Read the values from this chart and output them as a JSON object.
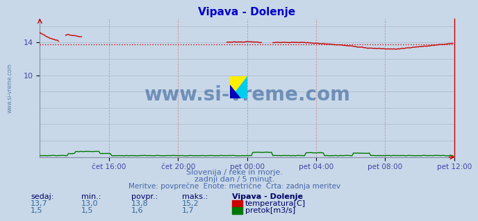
{
  "title": "Vipava - Dolenje",
  "background_color": "#c8d8e8",
  "plot_bg_color": "#c8d8e8",
  "grid_color_h": "#aabccc",
  "grid_color_v": "#cc9999",
  "xlabel_ticks": [
    "čet 16:00",
    "čet 20:00",
    "pet 00:00",
    "pet 04:00",
    "pet 08:00",
    "pet 12:00"
  ],
  "yticks": [
    10,
    14
  ],
  "ylim": [
    0,
    16.875
  ],
  "xlim": [
    0,
    288
  ],
  "temp_avg": 13.8,
  "temp_min": 13.0,
  "temp_max": 15.2,
  "temp_current": 13.7,
  "flow_avg": 1.6,
  "flow_min": 1.5,
  "flow_max": 1.7,
  "flow_current": 1.5,
  "temp_color": "#cc0000",
  "flow_color": "#007700",
  "avg_line_color": "#cc0000",
  "title_color": "#0000cc",
  "axis_label_color": "#4444aa",
  "text_color": "#336699",
  "info_text_color": "#4466aa",
  "label_color": "#000066",
  "watermark_text": "www.si-vreme.com",
  "watermark_color": "#1a4a8a",
  "subtitle1": "Slovenija / reke in morje.",
  "subtitle2": "zadnji dan / 5 minut.",
  "subtitle3": "Meritve: povprečne  Enote: metrične  Črta: zadnja meritev",
  "station_name": "Vipava - Dolenje"
}
